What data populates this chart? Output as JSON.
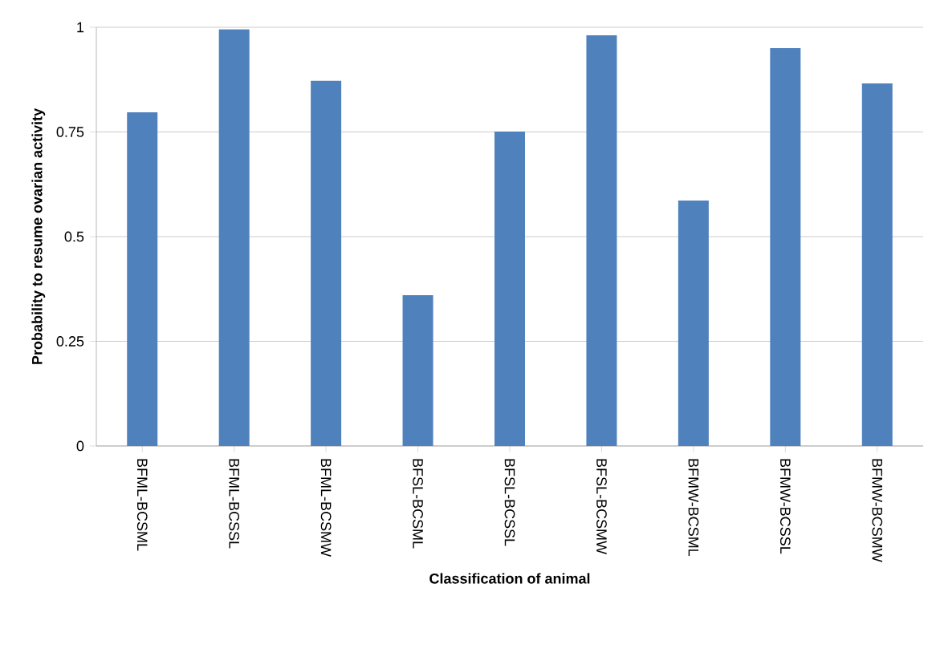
{
  "chart_data": {
    "type": "bar",
    "xlabel": "Classification of animal",
    "ylabel": "Probability to resume ovarian activity",
    "categories": [
      "BFML-BCSML",
      "BFML-BCSSL",
      "BFML-BCSMW",
      "BFSL-BCSML",
      "BFSL-BCSSL",
      "BFSL-BCSMW",
      "BFMW-BCSML",
      "BFMW-BCSSL",
      "BFMW-BCSMW"
    ],
    "values": [
      0.797,
      0.995,
      0.872,
      0.36,
      0.751,
      0.981,
      0.586,
      0.95,
      0.866
    ],
    "color": "#4f81bd",
    "ylim": [
      0,
      1
    ],
    "yticks": [
      0,
      0.25,
      0.5,
      0.75,
      1
    ],
    "grid": "y"
  }
}
